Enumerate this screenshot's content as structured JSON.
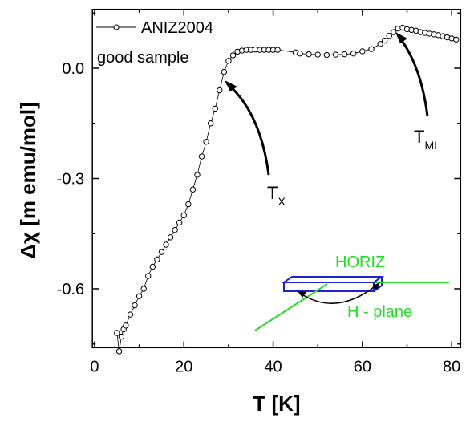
{
  "chart_data": {
    "type": "scatter",
    "xlabel": "T [K]",
    "ylabel": "Δχ [m emu/mol]",
    "xlim": [
      -0.5,
      82
    ],
    "ylim": [
      -0.76,
      0.16
    ],
    "xticks": [
      0,
      20,
      40,
      60,
      80
    ],
    "yticks": [
      {
        "value": -0.6,
        "label": "-0.6"
      },
      {
        "value": -0.3,
        "label": "-0.3"
      },
      {
        "value": 0,
        "label": "0.0"
      }
    ],
    "xminorticks": [
      10,
      30,
      50,
      70
    ],
    "yminorticks": [
      -0.75,
      -0.45,
      -0.15,
      0.15
    ],
    "series": [
      {
        "name": "ANIZ2004",
        "color": "#000000",
        "x": [
          5,
          5.5,
          6,
          6.5,
          7,
          8,
          9,
          10,
          11,
          12,
          13,
          14,
          15,
          16,
          17,
          18,
          19,
          20,
          21,
          22,
          23,
          24,
          25,
          26,
          27,
          28,
          29,
          30,
          31,
          32,
          33,
          34,
          35,
          36,
          37,
          38,
          39,
          40,
          41,
          45,
          46,
          48,
          50,
          52,
          54,
          56,
          58,
          60,
          62,
          64,
          65,
          66,
          67,
          68,
          69,
          70,
          71,
          72,
          73,
          74,
          75,
          76,
          77,
          78,
          79,
          80,
          81
        ],
        "values": [
          -0.72,
          -0.77,
          -0.73,
          -0.71,
          -0.7,
          -0.67,
          -0.645,
          -0.62,
          -0.6,
          -0.565,
          -0.54,
          -0.52,
          -0.5,
          -0.48,
          -0.46,
          -0.44,
          -0.42,
          -0.4,
          -0.37,
          -0.33,
          -0.29,
          -0.24,
          -0.2,
          -0.15,
          -0.11,
          -0.06,
          -0.01,
          0.02,
          0.035,
          0.045,
          0.048,
          0.05,
          0.05,
          0.051,
          0.05,
          0.05,
          0.05,
          0.05,
          0.05,
          0.043,
          0.04,
          0.038,
          0.037,
          0.036,
          0.037,
          0.038,
          0.04,
          0.046,
          0.052,
          0.066,
          0.075,
          0.088,
          0.098,
          0.108,
          0.11,
          0.106,
          0.104,
          0.102,
          0.098,
          0.096,
          0.094,
          0.092,
          0.09,
          0.087,
          0.084,
          0.081,
          0.078
        ]
      }
    ],
    "annotations": [
      {
        "text": "good sample"
      },
      {
        "text": "T",
        "sub": "X"
      },
      {
        "text": "T",
        "sub": "MI"
      },
      {
        "text": "HORIZ"
      },
      {
        "text": "H - plane"
      }
    ]
  }
}
